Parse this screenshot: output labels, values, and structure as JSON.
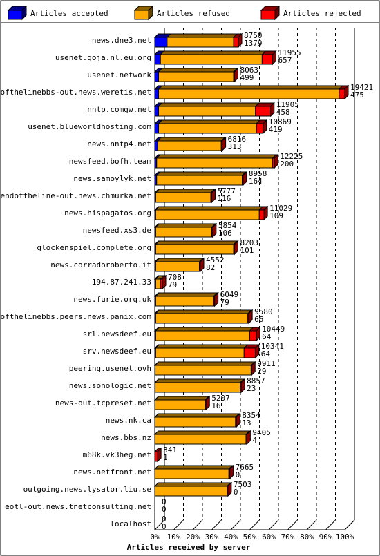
{
  "chart_data": {
    "type": "bar",
    "orientation": "horizontal",
    "stacked": true,
    "title": "",
    "xlabel": "Articles received by server",
    "ylabel": "",
    "xlim": [
      0,
      100
    ],
    "x_unit": "%",
    "x_ticks": [
      "0%",
      "10%",
      "20%",
      "30%",
      "40%",
      "50%",
      "60%",
      "70%",
      "80%",
      "90%",
      "100%"
    ],
    "legend_position": "top",
    "series": [
      {
        "name": "Articles accepted",
        "color": "#0000ff"
      },
      {
        "name": "Articles refused",
        "color": "#ffaa00"
      },
      {
        "name": "Articles rejected",
        "color": "#ff0000"
      }
    ],
    "rows": [
      {
        "server": "news.dne3.net",
        "accepted_pct": 6.5,
        "refused_pct": 35.0,
        "rejected_pct": 2.5,
        "label_top": "8750",
        "label_bottom": "1379"
      },
      {
        "server": "usenet.goja.nl.eu.org",
        "accepted_pct": 3.0,
        "refused_pct": 53.5,
        "rejected_pct": 5.5,
        "label_top": "11955",
        "label_bottom": "657"
      },
      {
        "server": "usenet.network",
        "accepted_pct": 2.0,
        "refused_pct": 39.5,
        "rejected_pct": 0.5,
        "label_top": "8063",
        "label_bottom": "499"
      },
      {
        "server": "endofthelinebbs-out.news.weretis.net",
        "accepted_pct": 2.0,
        "refused_pct": 95.0,
        "rejected_pct": 3.0,
        "label_top": "19421",
        "label_bottom": "475"
      },
      {
        "server": "nntp.comgw.net",
        "accepted_pct": 2.0,
        "refused_pct": 51.0,
        "rejected_pct": 8.0,
        "label_top": "11905",
        "label_bottom": "458"
      },
      {
        "server": "usenet.blueworldhosting.com",
        "accepted_pct": 2.0,
        "refused_pct": 51.5,
        "rejected_pct": 3.5,
        "label_top": "10869",
        "label_bottom": "419"
      },
      {
        "server": "news.nntp4.net",
        "accepted_pct": 1.5,
        "refused_pct": 33.5,
        "rejected_pct": 0.5,
        "label_top": "6816",
        "label_bottom": "313"
      },
      {
        "server": "newsfeed.bofh.team",
        "accepted_pct": 1.0,
        "refused_pct": 61.0,
        "rejected_pct": 1.0,
        "label_top": "12225",
        "label_bottom": "200"
      },
      {
        "server": "news.samoylyk.net",
        "accepted_pct": 1.0,
        "refused_pct": 45.0,
        "rejected_pct": 0.5,
        "label_top": "8958",
        "label_bottom": "164"
      },
      {
        "server": "endoftheline-out.news.chmurka.net",
        "accepted_pct": 0.5,
        "refused_pct": 29.0,
        "rejected_pct": 0.5,
        "label_top": "5777",
        "label_bottom": "116"
      },
      {
        "server": "news.hispagatos.org",
        "accepted_pct": 0.5,
        "refused_pct": 54.5,
        "rejected_pct": 2.5,
        "label_top": "11029",
        "label_bottom": "109"
      },
      {
        "server": "newsfeed.xs3.de",
        "accepted_pct": 0.5,
        "refused_pct": 29.5,
        "rejected_pct": 0.5,
        "label_top": "5854",
        "label_bottom": "106"
      },
      {
        "server": "glockenspiel.complete.org",
        "accepted_pct": 0.5,
        "refused_pct": 41.0,
        "rejected_pct": 0.5,
        "label_top": "8203",
        "label_bottom": "101"
      },
      {
        "server": "news.corradoroberto.it",
        "accepted_pct": 0.5,
        "refused_pct": 23.0,
        "rejected_pct": 0.5,
        "label_top": "4552",
        "label_bottom": "82"
      },
      {
        "server": "194.87.241.33",
        "accepted_pct": 0.5,
        "refused_pct": 2.5,
        "rejected_pct": 1.0,
        "label_top": "708",
        "label_bottom": "79"
      },
      {
        "server": "news.furie.org.uk",
        "accepted_pct": 0.5,
        "refused_pct": 30.5,
        "rejected_pct": 0.5,
        "label_top": "6049",
        "label_bottom": "79"
      },
      {
        "server": "endofthelinebbs.peers.news.panix.com",
        "accepted_pct": 0.5,
        "refused_pct": 48.5,
        "rejected_pct": 0.5,
        "label_top": "9580",
        "label_bottom": "66"
      },
      {
        "server": "srl.newsdeef.eu",
        "accepted_pct": 0.5,
        "refused_pct": 49.5,
        "rejected_pct": 3.5,
        "label_top": "10449",
        "label_bottom": "64"
      },
      {
        "server": "srv.newsdeef.eu",
        "accepted_pct": 0.5,
        "refused_pct": 46.5,
        "rejected_pct": 6.0,
        "label_top": "10341",
        "label_bottom": "64"
      },
      {
        "server": "peering.usenet.ovh",
        "accepted_pct": 0.2,
        "refused_pct": 50.5,
        "rejected_pct": 0.3,
        "label_top": "9911",
        "label_bottom": "29"
      },
      {
        "server": "news.sonologic.net",
        "accepted_pct": 0.2,
        "refused_pct": 44.8,
        "rejected_pct": 0.5,
        "label_top": "8857",
        "label_bottom": "23"
      },
      {
        "server": "news-out.tcpreset.net",
        "accepted_pct": 0.1,
        "refused_pct": 26.4,
        "rejected_pct": 0.5,
        "label_top": "5207",
        "label_bottom": "16"
      },
      {
        "server": "news.nk.ca",
        "accepted_pct": 0.1,
        "refused_pct": 42.4,
        "rejected_pct": 0.5,
        "label_top": "8354",
        "label_bottom": "13"
      },
      {
        "server": "news.bbs.nz",
        "accepted_pct": 0.0,
        "refused_pct": 48.0,
        "rejected_pct": 0.5,
        "label_top": "9405",
        "label_bottom": "4"
      },
      {
        "server": "m68k.vk3heg.net",
        "accepted_pct": 0.0,
        "refused_pct": 0.0,
        "rejected_pct": 1.5,
        "label_top": "341",
        "label_bottom": "1"
      },
      {
        "server": "news.netfront.net",
        "accepted_pct": 0.0,
        "refused_pct": 39.0,
        "rejected_pct": 0.5,
        "label_top": "7665",
        "label_bottom": "0"
      },
      {
        "server": "outgoing.news.lysator.liu.se",
        "accepted_pct": 0.0,
        "refused_pct": 38.0,
        "rejected_pct": 0.5,
        "label_top": "7503",
        "label_bottom": "0"
      },
      {
        "server": "eotl-out.news.tnetconsulting.net",
        "accepted_pct": 0.0,
        "refused_pct": 0.0,
        "rejected_pct": 0.0,
        "label_top": "0",
        "label_bottom": "0"
      },
      {
        "server": "localhost",
        "accepted_pct": 0.0,
        "refused_pct": 0.0,
        "rejected_pct": 0.0,
        "label_top": "0",
        "label_bottom": "0"
      }
    ]
  }
}
